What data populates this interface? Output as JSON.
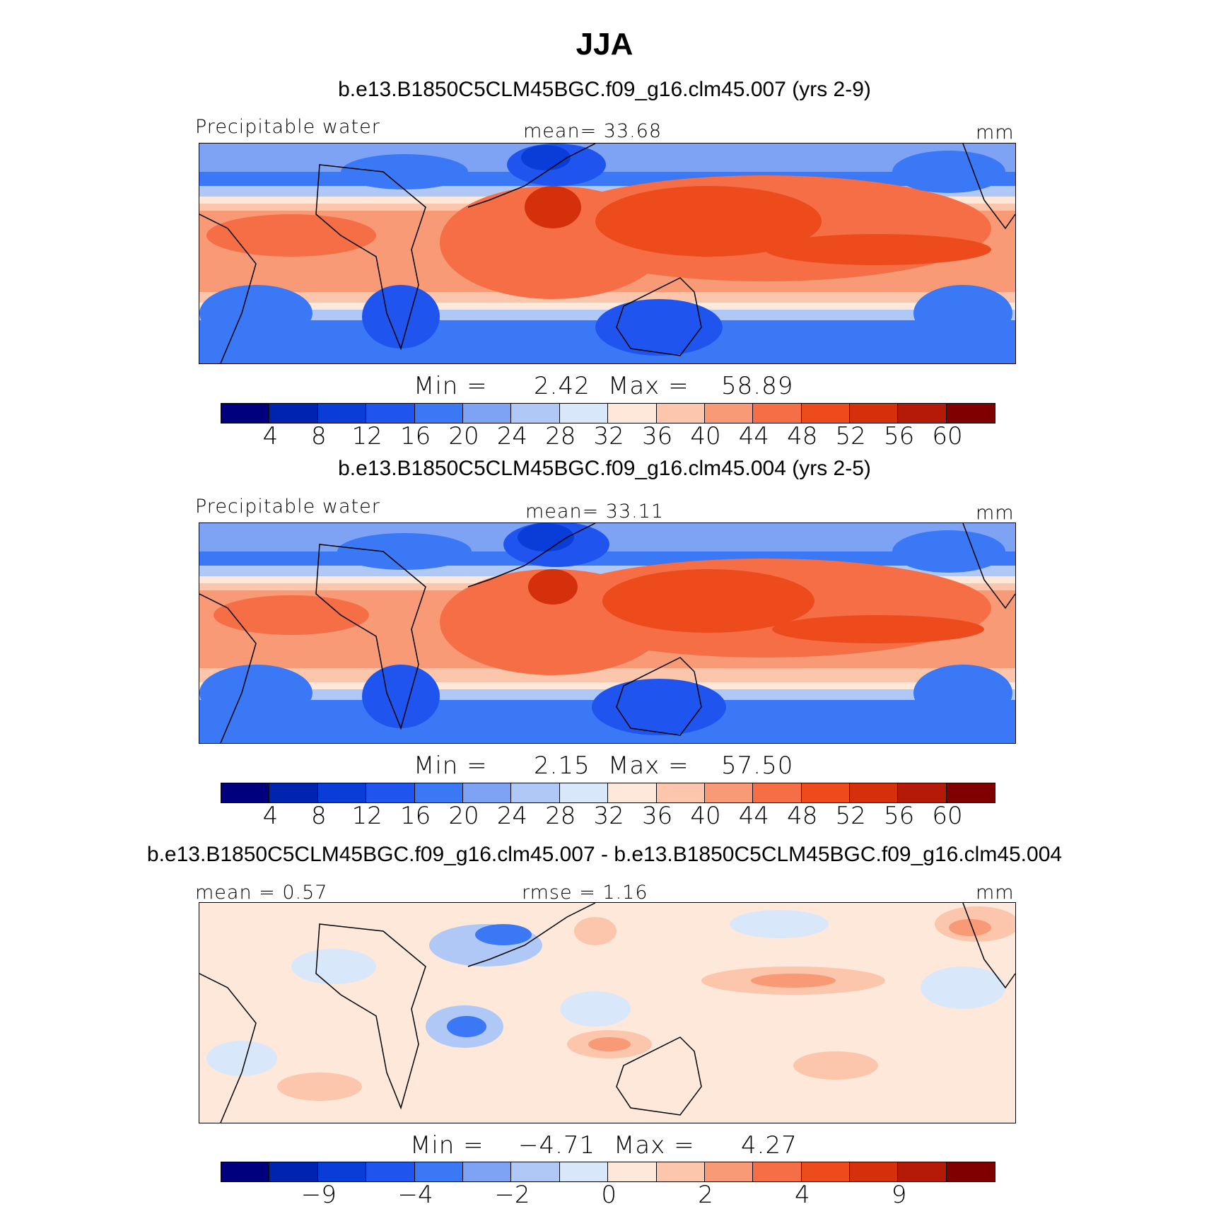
{
  "title": "JJA",
  "colors": [
    "#00007f",
    "#0023b0",
    "#0a3cd8",
    "#1f55ee",
    "#3a78f5",
    "#7ea3f5",
    "#b0c8f6",
    "#d9e7fb",
    "#fde8da",
    "#fbc6ac",
    "#f89a76",
    "#f66e46",
    "#ee4b1c",
    "#d5300c",
    "#b41a07",
    "#800000"
  ],
  "panels": [
    {
      "case_title": "b.e13.B1850C5CLM45BGC.f09_g16.clm45.007 (yrs 2-9)",
      "left_label": "Precipitable water",
      "center_label": "mean=   33.68",
      "right_label": "mm",
      "min_label": "Min  =",
      "min_value": "2.42",
      "max_label": "Max  =",
      "max_value": "58.89",
      "ticks": [
        "4",
        "8",
        "12",
        "16",
        "20",
        "24",
        "28",
        "32",
        "36",
        "40",
        "44",
        "48",
        "52",
        "56",
        "60"
      ]
    },
    {
      "case_title": "b.e13.B1850C5CLM45BGC.f09_g16.clm45.004 (yrs 2-5)",
      "left_label": "Precipitable water",
      "center_label": "mean=   33.11",
      "right_label": "mm",
      "min_label": "Min  =",
      "min_value": "2.15",
      "max_label": "Max  =",
      "max_value": "57.50",
      "ticks": [
        "4",
        "8",
        "12",
        "16",
        "20",
        "24",
        "28",
        "32",
        "36",
        "40",
        "44",
        "48",
        "52",
        "56",
        "60"
      ]
    },
    {
      "case_title": "b.e13.B1850C5CLM45BGC.f09_g16.clm45.007 - b.e13.B1850C5CLM45BGC.f09_g16.clm45.004",
      "left_label": "mean =    0.57",
      "center_label": "rmse =    1.16",
      "right_label": "mm",
      "min_label": "Min  =",
      "min_value": "−4.71",
      "max_label": "Max  =",
      "max_value": "4.27",
      "ticks": [
        "−9",
        "−4",
        "−2",
        "0",
        "2",
        "4",
        "9"
      ]
    }
  ]
}
